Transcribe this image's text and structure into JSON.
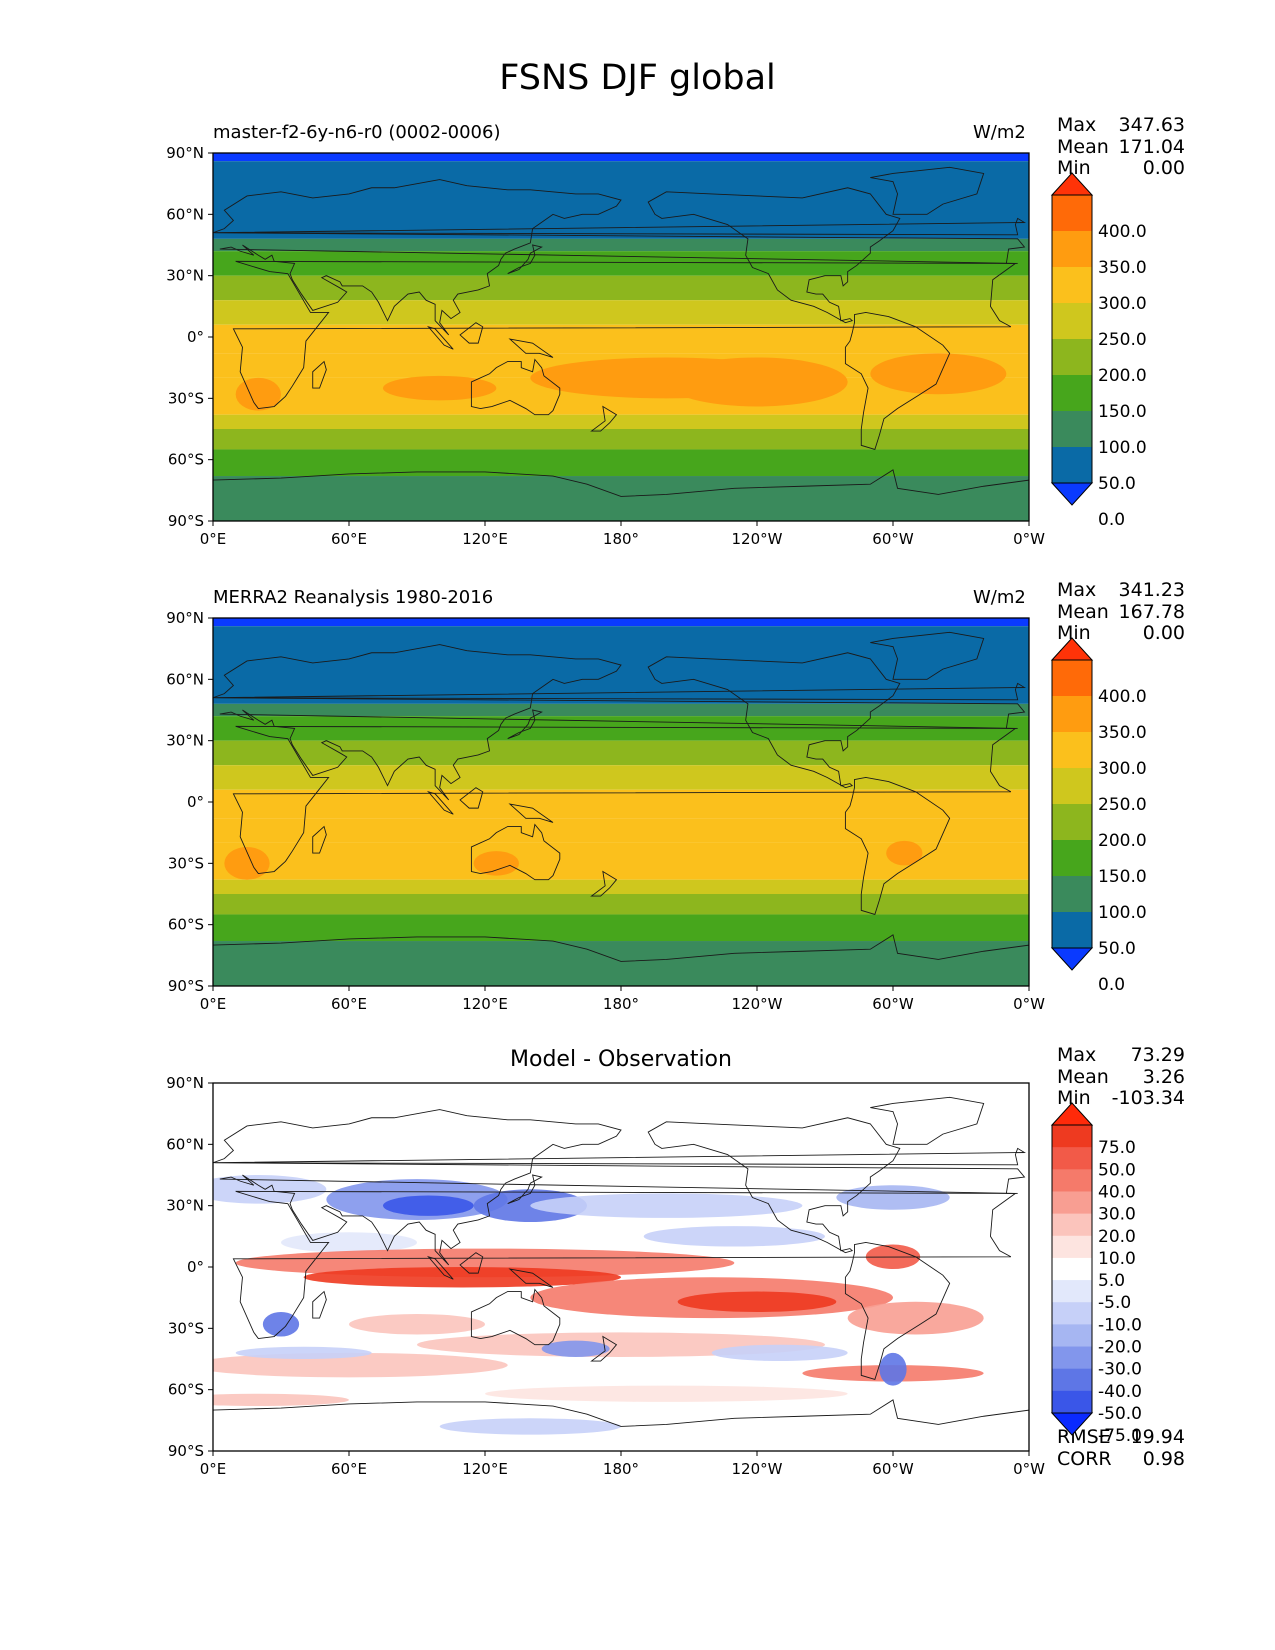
{
  "title": "FSNS DJF global",
  "panels": [
    {
      "left_title": "master-f2-6y-n6-r0 (0002-0006)",
      "units": "W/m2",
      "center_title": "",
      "stats": {
        "max_label": "Max",
        "max": "347.63",
        "mean_label": "Mean",
        "mean": "171.04",
        "min_label": "Min",
        "min": "0.00"
      },
      "colorbar": {
        "labels": [
          "400.0",
          "350.0",
          "300.0",
          "250.0",
          "200.0",
          "150.0",
          "100.0",
          "50.0",
          "0.0"
        ],
        "colors": [
          "#ff3308",
          "#ff6a08",
          "#ff9c10",
          "#fbc01c",
          "#cfc71e",
          "#8db61e",
          "#47a61c",
          "#3a8a5c",
          "#0a6aa6",
          "#0a3aff"
        ]
      }
    },
    {
      "left_title": "MERRA2 Reanalysis 1980-2016",
      "units": "W/m2",
      "center_title": "",
      "stats": {
        "max_label": "Max",
        "max": "341.23",
        "mean_label": "Mean",
        "mean": "167.78",
        "min_label": "Min",
        "min": "0.00"
      },
      "colorbar": {
        "labels": [
          "400.0",
          "350.0",
          "300.0",
          "250.0",
          "200.0",
          "150.0",
          "100.0",
          "50.0",
          "0.0"
        ],
        "colors": [
          "#ff3308",
          "#ff6a08",
          "#ff9c10",
          "#fbc01c",
          "#cfc71e",
          "#8db61e",
          "#47a61c",
          "#3a8a5c",
          "#0a6aa6",
          "#0a3aff"
        ]
      }
    },
    {
      "left_title": "",
      "units": "",
      "center_title": "Model - Observation",
      "stats": {
        "max_label": "Max",
        "max": "73.29",
        "mean_label": "Mean",
        "mean": "3.26",
        "min_label": "Min",
        "min": "-103.34"
      },
      "colorbar": {
        "labels": [
          "75.0",
          "50.0",
          "40.0",
          "30.0",
          "20.0",
          "10.0",
          "5.0",
          "-5.0",
          "-10.0",
          "-20.0",
          "-30.0",
          "-40.0",
          "-50.0",
          "-75.0"
        ],
        "colors": [
          "#ff2a0a",
          "#ee3a20",
          "#f25a48",
          "#f57a6a",
          "#f89e92",
          "#fbc4bc",
          "#fde4e0",
          "#ffffff",
          "#e2e8fb",
          "#c6d0f8",
          "#a6b6f2",
          "#8296ec",
          "#5e76e6",
          "#3a56e8",
          "#0a2aff"
        ]
      },
      "metrics": {
        "rmse_label": "RMSE",
        "rmse": "19.94",
        "corr_label": "CORR",
        "corr": "0.98"
      }
    }
  ],
  "axes": {
    "xticks": [
      "0°E",
      "60°E",
      "120°E",
      "180°",
      "120°W",
      "60°W",
      "0°W"
    ],
    "yticks": [
      "90°N",
      "60°N",
      "30°N",
      "0°",
      "30°S",
      "60°S",
      "90°S"
    ]
  }
}
